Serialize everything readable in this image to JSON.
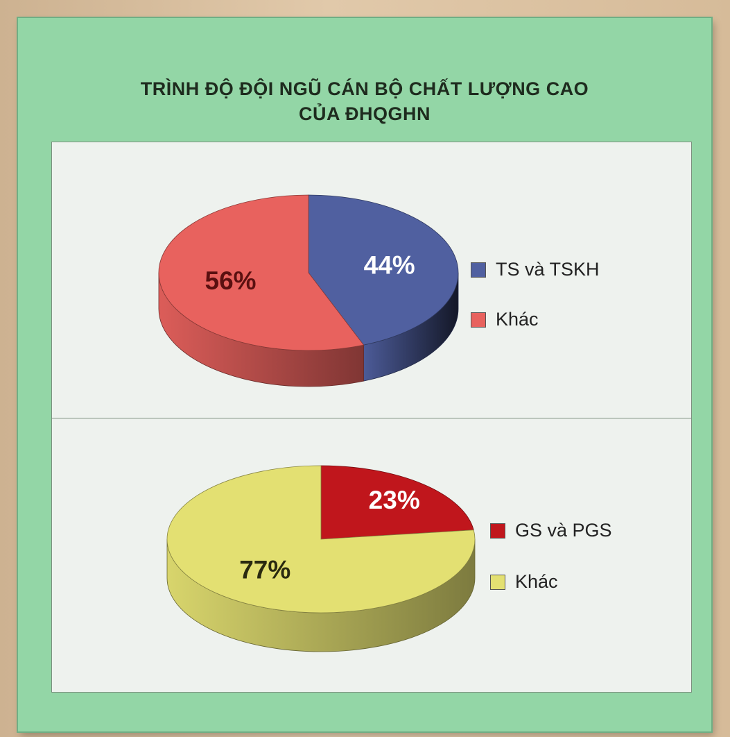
{
  "title_line1": "TRÌNH ĐỘ ĐỘI NGŨ CÁN BỘ CHẤT LƯỢNG CAO",
  "title_line2": "CỦA ĐHQGHN",
  "chart_data": [
    {
      "type": "pie",
      "slices": [
        {
          "label": "TS và TSKH",
          "value": 44,
          "text": "44%",
          "color": "#5060a0",
          "text_color": "#ffffff"
        },
        {
          "label": "Khác",
          "value": 56,
          "text": "56%",
          "color": "#e8625e",
          "text_color": "#5a1010"
        }
      ],
      "legend": [
        "TS và TSKH",
        "Khác"
      ],
      "legend_placement": "right"
    },
    {
      "type": "pie",
      "slices": [
        {
          "label": "GS và PGS",
          "value": 23,
          "text": "23%",
          "color": "#c0161c",
          "text_color": "#ffffff"
        },
        {
          "label": "Khác",
          "value": 77,
          "text": "77%",
          "color": "#e3e072",
          "text_color": "#2a2a10"
        }
      ],
      "legend": [
        "GS và PGS",
        "Khác"
      ],
      "legend_placement": "right"
    }
  ]
}
